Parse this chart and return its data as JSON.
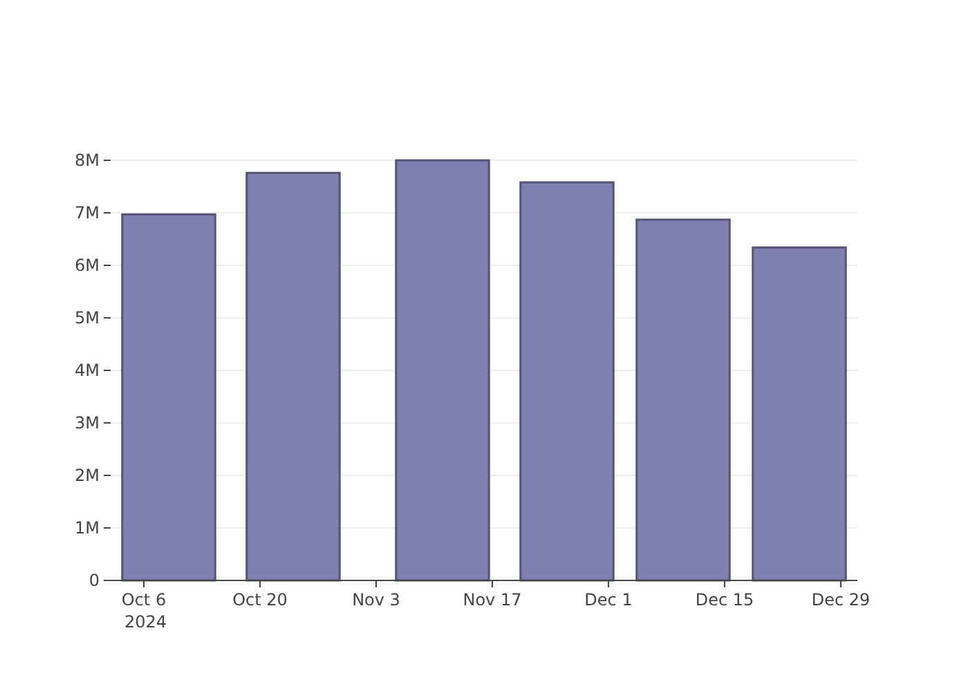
{
  "chart_data": {
    "type": "bar",
    "x": [
      "2024-10-09",
      "2024-10-24",
      "2024-11-11",
      "2024-11-26",
      "2024-12-10",
      "2024-12-24"
    ],
    "values": [
      6970000,
      7760000,
      8000000,
      7580000,
      6870000,
      6340000
    ],
    "color": "#7f7fb0",
    "xlim": [
      "2024-10-02",
      "2024-12-31"
    ],
    "xticks": [
      {
        "value": "2024-10-06",
        "label": "Oct 6\n2024"
      },
      {
        "value": "2024-10-20",
        "label": "Oct 20"
      },
      {
        "value": "2024-11-03",
        "label": "Nov 3"
      },
      {
        "value": "2024-11-17",
        "label": "Nov 17"
      },
      {
        "value": "2024-12-01",
        "label": "Dec 1"
      },
      {
        "value": "2024-12-15",
        "label": "Dec 15"
      },
      {
        "value": "2024-12-29",
        "label": "Dec 29"
      }
    ],
    "ylim": [
      0,
      8000000
    ],
    "yticks": [
      {
        "value": 0,
        "label": "0"
      },
      {
        "value": 1000000,
        "label": "1M"
      },
      {
        "value": 2000000,
        "label": "2M"
      },
      {
        "value": 3000000,
        "label": "3M"
      },
      {
        "value": 4000000,
        "label": "4M"
      },
      {
        "value": 5000000,
        "label": "5M"
      },
      {
        "value": 6000000,
        "label": "6M"
      },
      {
        "value": 7000000,
        "label": "7M"
      },
      {
        "value": 8000000,
        "label": "8M"
      }
    ],
    "grid": "y"
  }
}
